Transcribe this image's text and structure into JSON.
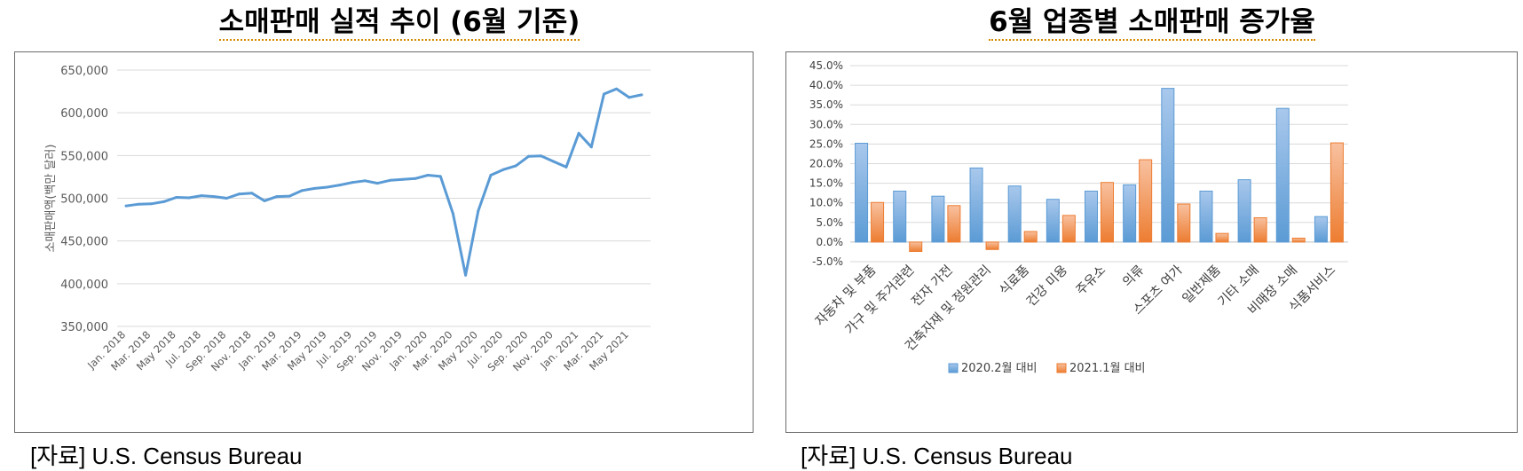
{
  "titles": {
    "left": "소매판매 실적 추이 (6월 기준)",
    "right": "6월 업종별 소매판매 증가율"
  },
  "sources": {
    "left": "[자료] U.S. Census Bureau",
    "right": "[자료] U.S. Census Bureau"
  },
  "chart_data": [
    {
      "type": "line",
      "title": "소매판매 실적 추이 (6월 기준)",
      "ylabel": "소매판매액(백만 달러)",
      "xlabel": "",
      "ylim": [
        350000,
        650000
      ],
      "yticks": [
        350000,
        400000,
        450000,
        500000,
        550000,
        600000,
        650000
      ],
      "ytick_labels": [
        "350,000",
        "400,000",
        "450,000",
        "500,000",
        "550,000",
        "600,000",
        "650,000"
      ],
      "grid": true,
      "color": "#5b9bd5",
      "x": [
        "Jan. 2018",
        "Feb. 2018",
        "Mar. 2018",
        "Apr. 2018",
        "May 2018",
        "Jun. 2018",
        "Jul. 2018",
        "Aug. 2018",
        "Sep. 2018",
        "Oct. 2018",
        "Nov. 2018",
        "Dec. 2018",
        "Jan. 2019",
        "Feb. 2019",
        "Mar. 2019",
        "Apr. 2019",
        "May 2019",
        "Jun. 2019",
        "Jul. 2019",
        "Aug. 2019",
        "Sep. 2019",
        "Oct. 2019",
        "Nov. 2019",
        "Dec. 2019",
        "Jan. 2020",
        "Feb. 2020",
        "Mar. 2020",
        "Apr. 2020",
        "May 2020",
        "Jun. 2020",
        "Jul. 2020",
        "Aug. 2020",
        "Sep. 2020",
        "Oct. 2020",
        "Nov. 2020",
        "Dec. 2020",
        "Jan. 2021",
        "Feb. 2021",
        "Mar. 2021",
        "Apr. 2021",
        "May 2021",
        "Jun. 2021"
      ],
      "xtick_labels": [
        "Jan. 2018",
        "Mar. 2018",
        "May 2018",
        "Jul. 2018",
        "Sep. 2018",
        "Nov. 2018",
        "Jan. 2019",
        "Mar. 2019",
        "May 2019",
        "Jul. 2019",
        "Sep. 2019",
        "Nov. 2019",
        "Jan. 2020",
        "Mar. 2020",
        "May 2020",
        "Jul. 2020",
        "Sep. 2020",
        "Nov. 2020",
        "Jan. 2021",
        "Mar. 2021",
        "May 2021"
      ],
      "values": [
        491000,
        493000,
        493500,
        496000,
        501000,
        500500,
        503000,
        502000,
        500000,
        505000,
        506000,
        497000,
        502000,
        502500,
        509000,
        511500,
        513000,
        515500,
        518500,
        520500,
        517500,
        521000,
        522000,
        523000,
        527000,
        525500,
        482000,
        410000,
        485000,
        527000,
        533500,
        538000,
        549000,
        549500,
        543000,
        536500,
        576000,
        560000,
        622000,
        628000,
        618000,
        621000
      ]
    },
    {
      "type": "bar",
      "title": "6월 업종별 소매판매 증가율",
      "ylim": [
        -0.05,
        0.45
      ],
      "yticks": [
        -0.05,
        0,
        0.05,
        0.1,
        0.15,
        0.2,
        0.25,
        0.3,
        0.35,
        0.4,
        0.45
      ],
      "ytick_labels": [
        "-5.0%",
        "0.0%",
        "5.0%",
        "10.0%",
        "15.0%",
        "20.0%",
        "25.0%",
        "30.0%",
        "35.0%",
        "40.0%",
        "45.0%"
      ],
      "grid": true,
      "legend_position": "bottom",
      "categories": [
        "자동차 및 부품",
        "가구 및 주거관련",
        "전자 가전",
        "건축자재 및 정원관리",
        "식료품",
        "건강 미용",
        "주유소",
        "의류",
        "스포츠 여가",
        "일반제품",
        "기타 소매",
        "비매장 소매",
        "식품서비스"
      ],
      "series": [
        {
          "name": "2020.2월 대비",
          "color": "#5b9bd5",
          "values": [
            0.252,
            0.13,
            0.117,
            0.189,
            0.143,
            0.109,
            0.13,
            0.146,
            0.392,
            0.13,
            0.159,
            0.341,
            0.065
          ]
        },
        {
          "name": "2021.1월 대비",
          "color": "#ed7d31",
          "values": [
            0.101,
            -0.024,
            0.093,
            -0.019,
            0.027,
            0.068,
            0.152,
            0.21,
            0.097,
            0.022,
            0.062,
            0.01,
            0.253
          ]
        }
      ]
    }
  ]
}
